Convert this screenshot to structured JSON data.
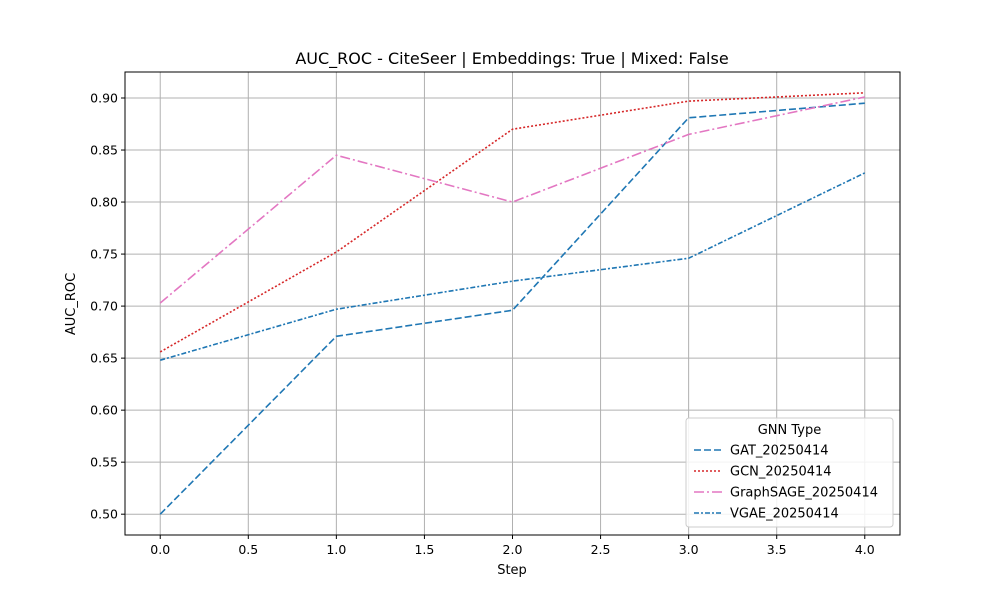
{
  "chart_data": {
    "type": "line",
    "title": "AUC_ROC - CiteSeer | Embeddings: True | Mixed: False",
    "xlabel": "Step",
    "ylabel": "AUC_ROC",
    "xlim": [
      -0.2,
      4.2
    ],
    "ylim": [
      0.48,
      0.925
    ],
    "xticks": [
      0.0,
      0.5,
      1.0,
      1.5,
      2.0,
      2.5,
      3.0,
      3.5,
      4.0
    ],
    "xtick_labels": [
      "0.0",
      "0.5",
      "1.0",
      "1.5",
      "2.0",
      "2.5",
      "3.0",
      "3.5",
      "4.0"
    ],
    "yticks": [
      0.5,
      0.55,
      0.6,
      0.65,
      0.7,
      0.75,
      0.8,
      0.85,
      0.9
    ],
    "ytick_labels": [
      "0.50",
      "0.55",
      "0.60",
      "0.65",
      "0.70",
      "0.75",
      "0.80",
      "0.85",
      "0.90"
    ],
    "grid": true,
    "legend": {
      "title": "GNN Type",
      "placement": "lower-right"
    },
    "x": [
      0,
      1,
      2,
      3,
      4
    ],
    "series": [
      {
        "name": "GAT_20250414",
        "values": [
          0.5,
          0.671,
          0.696,
          0.881,
          0.895
        ],
        "color": "#1f77b4",
        "dash": "dashed"
      },
      {
        "name": "GCN_20250414",
        "values": [
          0.656,
          0.752,
          0.87,
          0.897,
          0.905
        ],
        "color": "#d62728",
        "dash": "dotted"
      },
      {
        "name": "GraphSAGE_20250414",
        "values": [
          0.703,
          0.845,
          0.8,
          0.865,
          0.901
        ],
        "color": "#e377c2",
        "dash": "dashdot"
      },
      {
        "name": "VGAE_20250414",
        "values": [
          0.648,
          0.697,
          0.724,
          0.746,
          0.828
        ],
        "color": "#1f77b4",
        "dash": "densedashdot"
      }
    ]
  }
}
